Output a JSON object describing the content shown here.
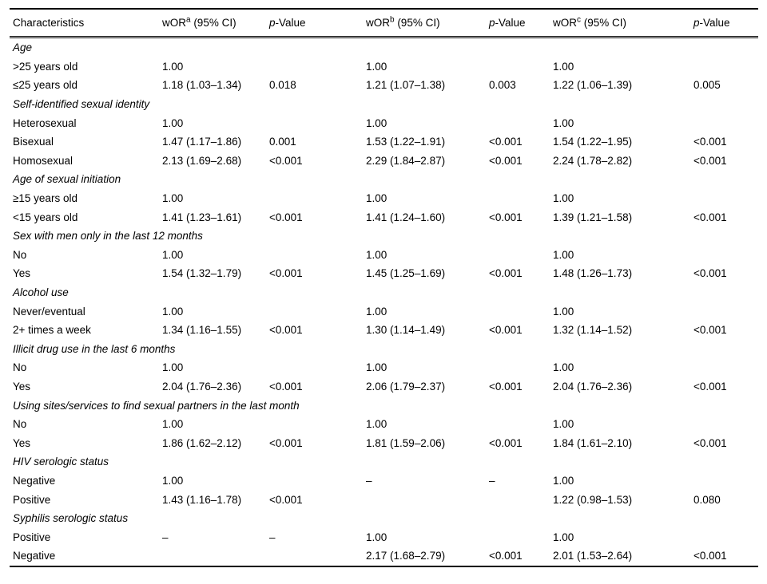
{
  "table": {
    "header": {
      "characteristics": "Characteristics",
      "wor": "wOR",
      "sup_a": "a",
      "sup_b": "b",
      "sup_c": "c",
      "ci": " (95% CI)",
      "p": "p",
      "value_suffix": "-Value"
    },
    "sections": [
      {
        "title": "Age",
        "rows": [
          {
            "label": ">25 years old",
            "or_a": "1.00",
            "p_a": "",
            "or_b": "1.00",
            "p_b": "",
            "or_c": "1.00",
            "p_c": ""
          },
          {
            "label": "≤25 years old",
            "or_a": "1.18 (1.03–1.34)",
            "p_a": "0.018",
            "or_b": "1.21 (1.07–1.38)",
            "p_b": "0.003",
            "or_c": "1.22 (1.06–1.39)",
            "p_c": "0.005"
          }
        ]
      },
      {
        "title": "Self-identified sexual identity",
        "rows": [
          {
            "label": "Heterosexual",
            "or_a": "1.00",
            "p_a": "",
            "or_b": "1.00",
            "p_b": "",
            "or_c": "1.00",
            "p_c": ""
          },
          {
            "label": "Bisexual",
            "or_a": "1.47 (1.17–1.86)",
            "p_a": "0.001",
            "or_b": "1.53 (1.22–1.91)",
            "p_b": "<0.001",
            "or_c": "1.54 (1.22–1.95)",
            "p_c": "<0.001"
          },
          {
            "label": "Homosexual",
            "or_a": "2.13 (1.69–2.68)",
            "p_a": "<0.001",
            "or_b": "2.29 (1.84–2.87)",
            "p_b": "<0.001",
            "or_c": "2.24 (1.78–2.82)",
            "p_c": "<0.001"
          }
        ]
      },
      {
        "title": "Age of sexual initiation",
        "rows": [
          {
            "label": "≥15 years old",
            "or_a": "1.00",
            "p_a": "",
            "or_b": "1.00",
            "p_b": "",
            "or_c": "1.00",
            "p_c": ""
          },
          {
            "label": "<15 years old",
            "or_a": "1.41 (1.23–1.61)",
            "p_a": "<0.001",
            "or_b": "1.41 (1.24–1.60)",
            "p_b": "<0.001",
            "or_c": "1.39 (1.21–1.58)",
            "p_c": "<0.001"
          }
        ]
      },
      {
        "title": "Sex with men only in the last 12 months",
        "rows": [
          {
            "label": "No",
            "or_a": "1.00",
            "p_a": "",
            "or_b": "1.00",
            "p_b": "",
            "or_c": "1.00",
            "p_c": ""
          },
          {
            "label": "Yes",
            "or_a": "1.54 (1.32–1.79)",
            "p_a": "<0.001",
            "or_b": "1.45 (1.25–1.69)",
            "p_b": "<0.001",
            "or_c": "1.48 (1.26–1.73)",
            "p_c": "<0.001"
          }
        ]
      },
      {
        "title": "Alcohol use",
        "rows": [
          {
            "label": "Never/eventual",
            "or_a": "1.00",
            "p_a": "",
            "or_b": "1.00",
            "p_b": "",
            "or_c": "1.00",
            "p_c": ""
          },
          {
            "label": "2+ times a week",
            "or_a": "1.34 (1.16–1.55)",
            "p_a": "<0.001",
            "or_b": "1.30 (1.14–1.49)",
            "p_b": "<0.001",
            "or_c": "1.32 (1.14–1.52)",
            "p_c": "<0.001"
          }
        ]
      },
      {
        "title": "Illicit drug use in the last 6 months",
        "rows": [
          {
            "label": "No",
            "or_a": "1.00",
            "p_a": "",
            "or_b": "1.00",
            "p_b": "",
            "or_c": "1.00",
            "p_c": ""
          },
          {
            "label": "Yes",
            "or_a": "2.04 (1.76–2.36)",
            "p_a": "<0.001",
            "or_b": "2.06 (1.79–2.37)",
            "p_b": "<0.001",
            "or_c": "2.04 (1.76–2.36)",
            "p_c": "<0.001"
          }
        ]
      },
      {
        "title": "Using sites/services to find sexual partners in the last month",
        "rows": [
          {
            "label": "No",
            "or_a": "1.00",
            "p_a": "",
            "or_b": "1.00",
            "p_b": "",
            "or_c": "1.00",
            "p_c": ""
          },
          {
            "label": "Yes",
            "or_a": "1.86 (1.62–2.12)",
            "p_a": "<0.001",
            "or_b": "1.81 (1.59–2.06)",
            "p_b": "<0.001",
            "or_c": "1.84 (1.61–2.10)",
            "p_c": "<0.001"
          }
        ]
      },
      {
        "title": "HIV serologic status",
        "rows": [
          {
            "label": "Negative",
            "or_a": "1.00",
            "p_a": "",
            "or_b": "–",
            "p_b": "–",
            "or_c": "1.00",
            "p_c": ""
          },
          {
            "label": "Positive",
            "or_a": "1.43 (1.16–1.78)",
            "p_a": "<0.001",
            "or_b": "",
            "p_b": "",
            "or_c": "1.22 (0.98–1.53)",
            "p_c": "0.080"
          }
        ]
      },
      {
        "title": "Syphilis serologic status",
        "rows": [
          {
            "label": "Positive",
            "or_a": "–",
            "p_a": "–",
            "or_b": "1.00",
            "p_b": "",
            "or_c": "1.00",
            "p_c": ""
          },
          {
            "label": "Negative",
            "or_a": "",
            "p_a": "",
            "or_b": "2.17 (1.68–2.79)",
            "p_b": "<0.001",
            "or_c": "2.01 (1.53–2.64)",
            "p_c": "<0.001"
          }
        ]
      }
    ]
  }
}
